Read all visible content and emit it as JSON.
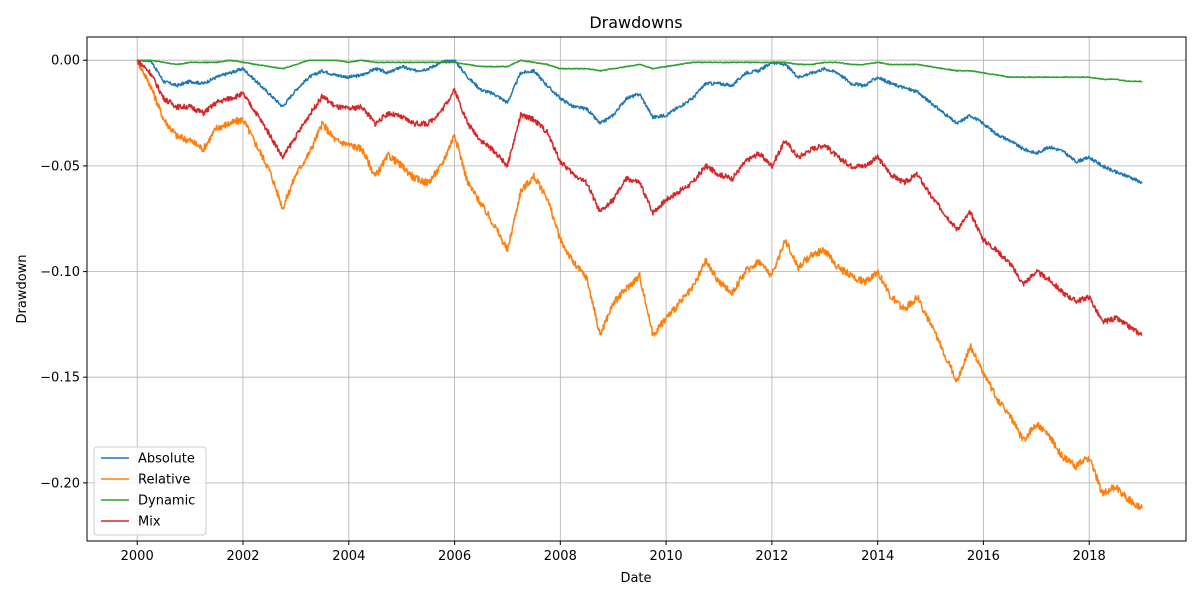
{
  "chart_data": {
    "type": "line",
    "title": "Drawdowns",
    "xlabel": "Date",
    "ylabel": "Drawdown",
    "xlim": [
      1999.05,
      2019.83
    ],
    "ylim": [
      -0.2275,
      0.011
    ],
    "grid": true,
    "legend_position": "lower left",
    "x_ticks": [
      2000,
      2002,
      2004,
      2006,
      2008,
      2010,
      2012,
      2014,
      2016,
      2018
    ],
    "x_tick_labels": [
      "2000",
      "2002",
      "2004",
      "2006",
      "2008",
      "2010",
      "2012",
      "2014",
      "2016",
      "2018"
    ],
    "y_ticks": [
      0.0,
      -0.05,
      -0.1,
      -0.15,
      -0.2
    ],
    "y_tick_labels": [
      "0.00",
      "−0.05",
      "−0.10",
      "−0.15",
      "−0.20"
    ],
    "x": [
      2000.0,
      2000.25,
      2000.5,
      2000.75,
      2001.0,
      2001.25,
      2001.5,
      2001.75,
      2002.0,
      2002.25,
      2002.5,
      2002.75,
      2003.0,
      2003.25,
      2003.5,
      2003.75,
      2004.0,
      2004.25,
      2004.5,
      2004.75,
      2005.0,
      2005.25,
      2005.5,
      2005.75,
      2006.0,
      2006.25,
      2006.5,
      2006.75,
      2007.0,
      2007.25,
      2007.5,
      2007.75,
      2008.0,
      2008.25,
      2008.5,
      2008.75,
      2009.0,
      2009.25,
      2009.5,
      2009.75,
      2010.0,
      2010.25,
      2010.5,
      2010.75,
      2011.0,
      2011.25,
      2011.5,
      2011.75,
      2012.0,
      2012.25,
      2012.5,
      2012.75,
      2013.0,
      2013.25,
      2013.5,
      2013.75,
      2014.0,
      2014.25,
      2014.5,
      2014.75,
      2015.0,
      2015.25,
      2015.5,
      2015.75,
      2016.0,
      2016.25,
      2016.5,
      2016.75,
      2017.0,
      2017.25,
      2017.5,
      2017.75,
      2018.0,
      2018.25,
      2018.5,
      2018.75,
      2019.0
    ],
    "series": [
      {
        "name": "Absolute",
        "color": "#1f77b4",
        "values": [
          0.0,
          0.0,
          -0.01,
          -0.012,
          -0.01,
          -0.011,
          -0.008,
          -0.006,
          -0.004,
          -0.01,
          -0.016,
          -0.022,
          -0.014,
          -0.008,
          -0.005,
          -0.007,
          -0.008,
          -0.007,
          -0.004,
          -0.006,
          -0.003,
          -0.005,
          -0.004,
          -0.001,
          0.0,
          -0.008,
          -0.014,
          -0.016,
          -0.02,
          -0.006,
          -0.005,
          -0.012,
          -0.018,
          -0.022,
          -0.023,
          -0.03,
          -0.026,
          -0.018,
          -0.016,
          -0.027,
          -0.026,
          -0.022,
          -0.018,
          -0.011,
          -0.011,
          -0.012,
          -0.006,
          -0.005,
          -0.001,
          -0.002,
          -0.008,
          -0.006,
          -0.004,
          -0.006,
          -0.011,
          -0.012,
          -0.008,
          -0.011,
          -0.013,
          -0.015,
          -0.02,
          -0.025,
          -0.03,
          -0.026,
          -0.03,
          -0.035,
          -0.038,
          -0.042,
          -0.044,
          -0.041,
          -0.043,
          -0.048,
          -0.046,
          -0.05,
          -0.053,
          -0.055,
          -0.058
        ]
      },
      {
        "name": "Relative",
        "color": "#ff7f0e",
        "values": [
          0.0,
          -0.012,
          -0.028,
          -0.036,
          -0.038,
          -0.042,
          -0.032,
          -0.03,
          -0.028,
          -0.04,
          -0.052,
          -0.07,
          -0.054,
          -0.044,
          -0.03,
          -0.038,
          -0.04,
          -0.042,
          -0.055,
          -0.045,
          -0.05,
          -0.056,
          -0.058,
          -0.05,
          -0.035,
          -0.058,
          -0.068,
          -0.078,
          -0.09,
          -0.062,
          -0.055,
          -0.065,
          -0.085,
          -0.096,
          -0.103,
          -0.13,
          -0.115,
          -0.108,
          -0.102,
          -0.13,
          -0.122,
          -0.115,
          -0.108,
          -0.095,
          -0.105,
          -0.11,
          -0.1,
          -0.095,
          -0.102,
          -0.085,
          -0.098,
          -0.092,
          -0.09,
          -0.098,
          -0.102,
          -0.105,
          -0.1,
          -0.112,
          -0.118,
          -0.112,
          -0.125,
          -0.138,
          -0.152,
          -0.135,
          -0.148,
          -0.16,
          -0.168,
          -0.18,
          -0.172,
          -0.178,
          -0.188,
          -0.192,
          -0.188,
          -0.205,
          -0.202,
          -0.208,
          -0.212
        ]
      },
      {
        "name": "Dynamic",
        "color": "#2ca02c",
        "values": [
          0.0,
          0.0,
          -0.001,
          -0.002,
          -0.001,
          -0.001,
          -0.001,
          0.0,
          -0.001,
          -0.002,
          -0.003,
          -0.004,
          -0.002,
          0.0,
          0.0,
          0.0,
          -0.001,
          0.0,
          -0.001,
          -0.001,
          -0.001,
          -0.001,
          -0.001,
          -0.001,
          -0.001,
          -0.002,
          -0.003,
          -0.003,
          -0.003,
          0.0,
          -0.001,
          -0.002,
          -0.004,
          -0.004,
          -0.004,
          -0.005,
          -0.004,
          -0.003,
          -0.002,
          -0.004,
          -0.003,
          -0.002,
          -0.001,
          -0.001,
          -0.001,
          -0.001,
          -0.001,
          -0.001,
          -0.001,
          -0.001,
          -0.002,
          -0.002,
          -0.001,
          -0.001,
          -0.002,
          -0.002,
          -0.001,
          -0.002,
          -0.002,
          -0.002,
          -0.003,
          -0.004,
          -0.005,
          -0.005,
          -0.006,
          -0.007,
          -0.008,
          -0.008,
          -0.008,
          -0.008,
          -0.008,
          -0.008,
          -0.008,
          -0.009,
          -0.009,
          -0.01,
          -0.01
        ]
      },
      {
        "name": "Mix",
        "color": "#d62728",
        "values": [
          0.0,
          -0.006,
          -0.018,
          -0.022,
          -0.022,
          -0.025,
          -0.02,
          -0.018,
          -0.016,
          -0.025,
          -0.035,
          -0.046,
          -0.036,
          -0.026,
          -0.017,
          -0.022,
          -0.023,
          -0.022,
          -0.03,
          -0.025,
          -0.027,
          -0.03,
          -0.03,
          -0.024,
          -0.014,
          -0.03,
          -0.038,
          -0.043,
          -0.05,
          -0.026,
          -0.028,
          -0.034,
          -0.048,
          -0.054,
          -0.058,
          -0.072,
          -0.066,
          -0.056,
          -0.058,
          -0.072,
          -0.066,
          -0.062,
          -0.058,
          -0.05,
          -0.054,
          -0.056,
          -0.048,
          -0.044,
          -0.05,
          -0.038,
          -0.046,
          -0.042,
          -0.04,
          -0.046,
          -0.05,
          -0.05,
          -0.046,
          -0.054,
          -0.058,
          -0.054,
          -0.064,
          -0.072,
          -0.08,
          -0.072,
          -0.085,
          -0.09,
          -0.096,
          -0.106,
          -0.1,
          -0.104,
          -0.11,
          -0.114,
          -0.112,
          -0.124,
          -0.122,
          -0.126,
          -0.13
        ]
      }
    ]
  }
}
